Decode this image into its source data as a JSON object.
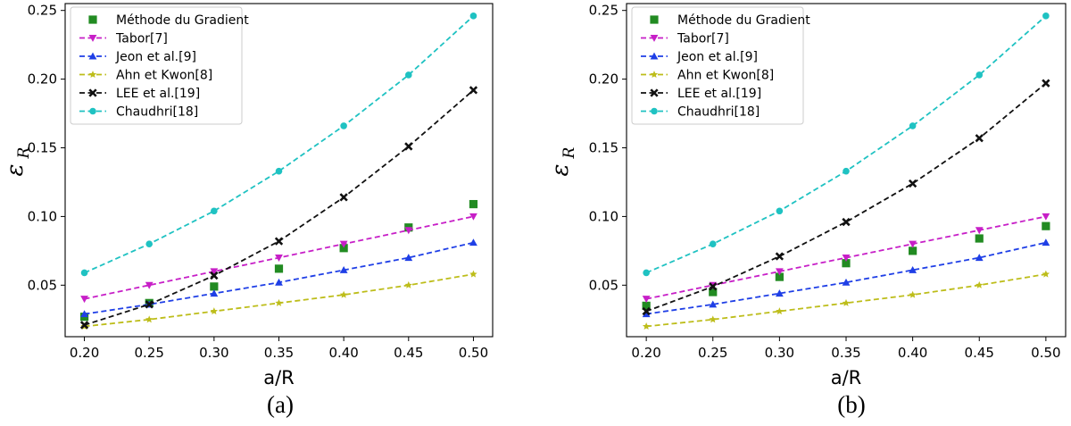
{
  "chart_data": [
    {
      "type": "line",
      "caption": "(a)",
      "xlabel": "a/R",
      "ylabel": "ε",
      "ylabel_sub": "R",
      "xlim": [
        0.2,
        0.5
      ],
      "ylim": [
        0.0125,
        0.255
      ],
      "xticks": [
        "0.20",
        "0.25",
        "0.30",
        "0.35",
        "0.40",
        "0.45",
        "0.50"
      ],
      "yticks": [
        "0.05",
        "0.10",
        "0.15",
        "0.20",
        "0.25"
      ],
      "grid": false,
      "legend_position": "top-left",
      "x": [
        0.2,
        0.25,
        0.3,
        0.35,
        0.4,
        0.45,
        0.5
      ],
      "series": [
        {
          "name": "Méthode du Gradient",
          "color": "#228B22",
          "marker": "square",
          "line": "none",
          "values": [
            0.027,
            0.037,
            0.049,
            0.062,
            0.077,
            0.092,
            0.109
          ]
        },
        {
          "name": "Tabor[7]",
          "color": "#C71FC7",
          "marker": "triangle-down",
          "line": "dashed",
          "values": [
            0.04,
            0.05,
            0.06,
            0.07,
            0.08,
            0.09,
            0.1
          ]
        },
        {
          "name": "Jeon et al.[9]",
          "color": "#1F3FE6",
          "marker": "triangle-up",
          "line": "dashed",
          "values": [
            0.029,
            0.036,
            0.044,
            0.052,
            0.061,
            0.07,
            0.081
          ]
        },
        {
          "name": "Ahn et Kwon[8]",
          "color": "#BDBD1A",
          "marker": "star",
          "line": "dashed",
          "values": [
            0.02,
            0.025,
            0.031,
            0.037,
            0.043,
            0.05,
            0.058
          ]
        },
        {
          "name": "LEE et al.[19]",
          "color": "#111111",
          "marker": "x",
          "line": "dashed",
          "values": [
            0.021,
            0.036,
            0.057,
            0.082,
            0.114,
            0.151,
            0.192
          ]
        },
        {
          "name": "Chaudhri[18]",
          "color": "#1FC2C2",
          "marker": "circle",
          "line": "dashed",
          "values": [
            0.059,
            0.08,
            0.104,
            0.133,
            0.166,
            0.203,
            0.246
          ]
        }
      ]
    },
    {
      "type": "line",
      "caption": "(b)",
      "xlabel": "a/R",
      "ylabel": "ε",
      "ylabel_sub": "R",
      "xlim": [
        0.2,
        0.5
      ],
      "ylim": [
        0.0125,
        0.255
      ],
      "xticks": [
        "0.20",
        "0.25",
        "0.30",
        "0.35",
        "0.40",
        "0.45",
        "0.50"
      ],
      "yticks": [
        "0.05",
        "0.10",
        "0.15",
        "0.20",
        "0.25"
      ],
      "grid": false,
      "legend_position": "top-left",
      "x": [
        0.2,
        0.25,
        0.3,
        0.35,
        0.4,
        0.45,
        0.5
      ],
      "series": [
        {
          "name": "Méthode du Gradient",
          "color": "#228B22",
          "marker": "square",
          "line": "none",
          "values": [
            0.035,
            0.045,
            0.056,
            0.066,
            0.075,
            0.084,
            0.093
          ]
        },
        {
          "name": "Tabor[7]",
          "color": "#C71FC7",
          "marker": "triangle-down",
          "line": "dashed",
          "values": [
            0.04,
            0.05,
            0.06,
            0.07,
            0.08,
            0.09,
            0.1
          ]
        },
        {
          "name": "Jeon et al.[9]",
          "color": "#1F3FE6",
          "marker": "triangle-up",
          "line": "dashed",
          "values": [
            0.029,
            0.036,
            0.044,
            0.052,
            0.061,
            0.07,
            0.081
          ]
        },
        {
          "name": "Ahn et Kwon[8]",
          "color": "#BDBD1A",
          "marker": "star",
          "line": "dashed",
          "values": [
            0.02,
            0.025,
            0.031,
            0.037,
            0.043,
            0.05,
            0.058
          ]
        },
        {
          "name": "LEE et al.[19]",
          "color": "#111111",
          "marker": "x",
          "line": "dashed",
          "values": [
            0.031,
            0.049,
            0.071,
            0.096,
            0.124,
            0.157,
            0.197
          ]
        },
        {
          "name": "Chaudhri[18]",
          "color": "#1FC2C2",
          "marker": "circle",
          "line": "dashed",
          "values": [
            0.059,
            0.08,
            0.104,
            0.133,
            0.166,
            0.203,
            0.246
          ]
        }
      ]
    }
  ]
}
